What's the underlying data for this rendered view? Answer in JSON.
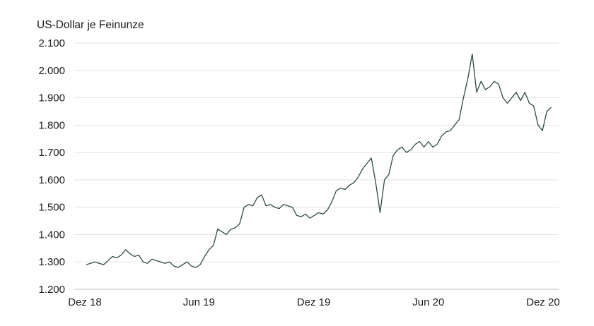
{
  "chart_data": {
    "type": "line",
    "ylabel": "US-Dollar je Feinunze",
    "xlabel": "",
    "ylim": [
      1200,
      2100
    ],
    "y_ticks": [
      1200,
      1300,
      1400,
      1500,
      1600,
      1700,
      1800,
      1900,
      2000,
      2100
    ],
    "y_tick_labels": [
      "1.200",
      "1.300",
      "1.400",
      "1.500",
      "1.600",
      "1.700",
      "1.800",
      "1.900",
      "2.000",
      "2.100"
    ],
    "x_range": [
      "2018-12-01",
      "2020-12-01"
    ],
    "x_ticks": [
      "2018-12-01",
      "2019-06-01",
      "2019-12-01",
      "2020-06-01",
      "2020-12-01"
    ],
    "x_tick_labels": [
      "Dez 18",
      "Jun 19",
      "Dez 19",
      "Jun 20",
      "Dez 20"
    ],
    "grid": "horizontal",
    "legend": "none",
    "colors": {
      "line": "#2f4a44",
      "grid": "#e3e3e3",
      "baseline": "#bdbdbd",
      "text": "#1a1a1a"
    },
    "series": [
      {
        "x": [
          "2018-12-03",
          "2018-12-10",
          "2018-12-17",
          "2018-12-24",
          "2018-12-31",
          "2019-01-07",
          "2019-01-14",
          "2019-01-21",
          "2019-01-28",
          "2019-02-04",
          "2019-02-11",
          "2019-02-18",
          "2019-02-25",
          "2019-03-04",
          "2019-03-11",
          "2019-03-18",
          "2019-03-25",
          "2019-04-01",
          "2019-04-08",
          "2019-04-15",
          "2019-04-22",
          "2019-04-29",
          "2019-05-06",
          "2019-05-13",
          "2019-05-20",
          "2019-05-27",
          "2019-06-03",
          "2019-06-10",
          "2019-06-17",
          "2019-06-24",
          "2019-07-01",
          "2019-07-08",
          "2019-07-15",
          "2019-07-22",
          "2019-07-29",
          "2019-08-05",
          "2019-08-12",
          "2019-08-19",
          "2019-08-26",
          "2019-09-02",
          "2019-09-09",
          "2019-09-16",
          "2019-09-23",
          "2019-09-30",
          "2019-10-07",
          "2019-10-14",
          "2019-10-21",
          "2019-10-28",
          "2019-11-04",
          "2019-11-11",
          "2019-11-18",
          "2019-11-25",
          "2019-12-02",
          "2019-12-09",
          "2019-12-16",
          "2019-12-23",
          "2019-12-30",
          "2020-01-06",
          "2020-01-13",
          "2020-01-20",
          "2020-01-27",
          "2020-02-03",
          "2020-02-10",
          "2020-02-17",
          "2020-02-24",
          "2020-03-02",
          "2020-03-09",
          "2020-03-16",
          "2020-03-23",
          "2020-03-30",
          "2020-04-06",
          "2020-04-13",
          "2020-04-20",
          "2020-04-27",
          "2020-05-04",
          "2020-05-11",
          "2020-05-18",
          "2020-05-25",
          "2020-06-01",
          "2020-06-08",
          "2020-06-15",
          "2020-06-22",
          "2020-06-29",
          "2020-07-06",
          "2020-07-13",
          "2020-07-20",
          "2020-07-27",
          "2020-08-03",
          "2020-08-10",
          "2020-08-17",
          "2020-08-24",
          "2020-08-31",
          "2020-09-07",
          "2020-09-14",
          "2020-09-21",
          "2020-09-28",
          "2020-10-05",
          "2020-10-12",
          "2020-10-19",
          "2020-10-26",
          "2020-11-02",
          "2020-11-09",
          "2020-11-16",
          "2020-11-23",
          "2020-11-30",
          "2020-12-07",
          "2020-12-14"
        ],
        "values": [
          1290,
          1295,
          1300,
          1295,
          1290,
          1305,
          1320,
          1315,
          1325,
          1345,
          1330,
          1320,
          1325,
          1300,
          1295,
          1310,
          1305,
          1300,
          1295,
          1300,
          1285,
          1280,
          1290,
          1300,
          1285,
          1280,
          1290,
          1320,
          1345,
          1360,
          1420,
          1410,
          1400,
          1420,
          1425,
          1440,
          1500,
          1510,
          1505,
          1535,
          1545,
          1505,
          1510,
          1500,
          1495,
          1510,
          1505,
          1500,
          1470,
          1465,
          1475,
          1460,
          1470,
          1480,
          1475,
          1490,
          1520,
          1560,
          1570,
          1565,
          1580,
          1590,
          1610,
          1640,
          1660,
          1680,
          1590,
          1480,
          1600,
          1620,
          1690,
          1710,
          1720,
          1700,
          1710,
          1730,
          1740,
          1720,
          1740,
          1720,
          1730,
          1760,
          1775,
          1780,
          1800,
          1820,
          1900,
          1970,
          2060,
          1920,
          1960,
          1930,
          1940,
          1960,
          1950,
          1900,
          1880,
          1900,
          1920,
          1890,
          1920,
          1880,
          1870,
          1800,
          1780,
          1850,
          1865
        ]
      }
    ]
  }
}
